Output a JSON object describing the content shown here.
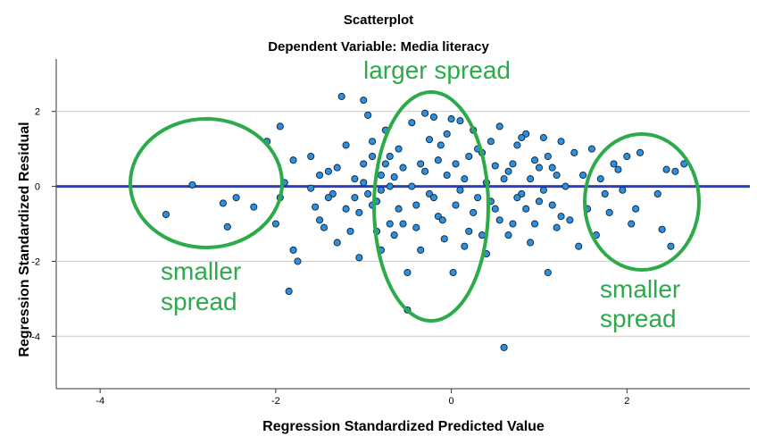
{
  "chart_data": {
    "type": "scatter",
    "title": "Scatterplot",
    "subtitle": "Dependent Variable: Media literacy",
    "xlabel": "Regression Standardized Predicted Value",
    "ylabel": "Regression Standardized Residual",
    "xlim": [
      -4.5,
      3.4
    ],
    "ylim": [
      -5.4,
      3.4
    ],
    "x_ticks": [
      -4,
      -2,
      0,
      2
    ],
    "x_tick_labels": [
      "-4",
      "-2",
      "0",
      "2"
    ],
    "y_ticks": [
      2,
      0,
      -2,
      -4
    ],
    "y_tick_labels": [
      "2",
      "0",
      "-2",
      "-4"
    ],
    "gridlines": "horizontal",
    "reference_line_y": 0,
    "colors": {
      "point_fill": "#2e8fdf",
      "point_stroke": "#0b2236",
      "reference_line": "#2d3fbf",
      "gridline": "#c8c8c8",
      "annotation": "#2daa4a"
    },
    "annotations": [
      {
        "text": "larger spread",
        "lines": [
          "larger spread"
        ]
      },
      {
        "text": "smaller spread",
        "lines": [
          "smaller",
          "spread"
        ]
      },
      {
        "text": "smaller spread",
        "lines": [
          "smaller",
          "spread"
        ]
      }
    ],
    "series": [
      {
        "values": [
          [
            -3.25,
            -0.75
          ],
          [
            -2.95,
            0.04
          ],
          [
            -2.6,
            -0.45
          ],
          [
            -2.55,
            -1.08
          ],
          [
            -2.45,
            -0.3
          ],
          [
            -2.25,
            -0.55
          ],
          [
            -2.1,
            1.2
          ],
          [
            -2.0,
            -1.0
          ],
          [
            -1.95,
            1.6
          ],
          [
            -1.95,
            -0.3
          ],
          [
            -1.9,
            0.1
          ],
          [
            -1.85,
            -2.8
          ],
          [
            -1.8,
            -1.7
          ],
          [
            -1.8,
            0.7
          ],
          [
            -1.75,
            -2.0
          ],
          [
            -1.6,
            -0.05
          ],
          [
            -1.55,
            -0.55
          ],
          [
            -1.5,
            -0.9
          ],
          [
            -1.45,
            -1.1
          ],
          [
            -1.4,
            0.4
          ],
          [
            -1.35,
            -0.2
          ],
          [
            -1.3,
            -1.5
          ],
          [
            -1.25,
            2.4
          ],
          [
            -1.2,
            1.1
          ],
          [
            -1.15,
            -1.2
          ],
          [
            -1.1,
            0.2
          ],
          [
            -1.05,
            -1.9
          ],
          [
            -1.0,
            2.3
          ],
          [
            -0.95,
            1.9
          ],
          [
            -0.9,
            0.8
          ],
          [
            -0.85,
            -0.4
          ],
          [
            -0.8,
            -1.7
          ],
          [
            -0.75,
            1.5
          ],
          [
            -0.7,
            0.0
          ],
          [
            -0.65,
            -1.3
          ],
          [
            -0.6,
            1.0
          ],
          [
            -0.55,
            0.5
          ],
          [
            -0.5,
            -2.3
          ],
          [
            -0.45,
            1.7
          ],
          [
            -0.4,
            -1.1
          ],
          [
            -0.35,
            0.6
          ],
          [
            -0.3,
            1.95
          ],
          [
            -0.25,
            -0.2
          ],
          [
            -0.2,
            1.85
          ],
          [
            -0.15,
            -0.8
          ],
          [
            -0.12,
            1.1
          ],
          [
            -0.08,
            -1.4
          ],
          [
            -0.05,
            0.3
          ],
          [
            0.0,
            1.8
          ],
          [
            0.02,
            -2.3
          ],
          [
            0.05,
            -0.5
          ],
          [
            0.1,
            1.75
          ],
          [
            0.15,
            0.2
          ],
          [
            0.2,
            -1.2
          ],
          [
            0.25,
            1.5
          ],
          [
            0.3,
            -0.3
          ],
          [
            0.35,
            0.9
          ],
          [
            0.4,
            -1.8
          ],
          [
            0.45,
            1.2
          ],
          [
            0.5,
            -0.6
          ],
          [
            0.55,
            1.6
          ],
          [
            0.6,
            -4.3
          ],
          [
            0.65,
            0.4
          ],
          [
            0.7,
            -1.0
          ],
          [
            0.75,
            1.1
          ],
          [
            0.8,
            -0.2
          ],
          [
            0.85,
            1.4
          ],
          [
            0.9,
            -1.5
          ],
          [
            0.95,
            0.7
          ],
          [
            1.0,
            -0.4
          ],
          [
            1.05,
            1.3
          ],
          [
            1.1,
            -2.3
          ],
          [
            1.15,
            0.5
          ],
          [
            1.2,
            -1.1
          ],
          [
            1.25,
            1.2
          ],
          [
            1.3,
            0.0
          ],
          [
            1.35,
            -0.9
          ],
          [
            1.4,
            0.9
          ],
          [
            1.45,
            -1.6
          ],
          [
            1.5,
            0.3
          ],
          [
            1.55,
            -0.6
          ],
          [
            1.6,
            1.0
          ],
          [
            1.65,
            -1.3
          ],
          [
            1.7,
            0.2
          ],
          [
            1.75,
            -0.2
          ],
          [
            1.8,
            -0.7
          ],
          [
            1.85,
            0.6
          ],
          [
            1.9,
            0.45
          ],
          [
            1.95,
            -0.1
          ],
          [
            2.0,
            0.8
          ],
          [
            2.05,
            -1.0
          ],
          [
            2.1,
            -0.6
          ],
          [
            2.15,
            0.9
          ],
          [
            2.35,
            -0.2
          ],
          [
            2.4,
            -1.15
          ],
          [
            2.45,
            0.45
          ],
          [
            2.5,
            -1.6
          ],
          [
            2.55,
            0.4
          ],
          [
            2.65,
            0.6
          ],
          [
            -0.5,
            -3.3
          ],
          [
            -0.55,
            -1.0
          ],
          [
            -0.45,
            0.0
          ],
          [
            -0.4,
            -0.5
          ],
          [
            -0.35,
            -1.7
          ],
          [
            -0.3,
            0.4
          ],
          [
            -0.25,
            1.25
          ],
          [
            -0.2,
            -0.3
          ],
          [
            -0.15,
            0.7
          ],
          [
            -0.1,
            -0.9
          ],
          [
            -0.05,
            1.4
          ],
          [
            0.05,
            0.6
          ],
          [
            0.1,
            -0.1
          ],
          [
            0.15,
            -1.6
          ],
          [
            0.2,
            0.8
          ],
          [
            0.25,
            -0.7
          ],
          [
            0.3,
            1.0
          ],
          [
            0.35,
            -1.3
          ],
          [
            0.4,
            0.1
          ],
          [
            0.45,
            -0.4
          ],
          [
            0.5,
            0.55
          ],
          [
            -0.6,
            -0.6
          ],
          [
            -0.65,
            0.25
          ],
          [
            -0.7,
            -1.0
          ],
          [
            -0.75,
            0.6
          ],
          [
            -0.8,
            0.3
          ],
          [
            -0.85,
            -1.2
          ],
          [
            -0.9,
            1.2
          ],
          [
            -0.95,
            -0.2
          ],
          [
            -1.0,
            0.6
          ],
          [
            -1.05,
            -0.7
          ],
          [
            0.55,
            -0.9
          ],
          [
            0.6,
            0.2
          ],
          [
            0.65,
            -1.3
          ],
          [
            0.7,
            0.6
          ],
          [
            0.75,
            -0.3
          ],
          [
            0.8,
            1.3
          ],
          [
            0.85,
            -0.6
          ],
          [
            0.9,
            0.2
          ],
          [
            0.95,
            -1.0
          ],
          [
            1.0,
            0.5
          ],
          [
            1.05,
            -0.1
          ],
          [
            1.1,
            0.8
          ],
          [
            1.15,
            -0.5
          ],
          [
            1.2,
            0.3
          ],
          [
            1.25,
            -0.8
          ],
          [
            -1.6,
            0.8
          ],
          [
            -1.5,
            0.3
          ],
          [
            -1.4,
            -0.3
          ],
          [
            -1.3,
            0.5
          ],
          [
            -1.2,
            -0.6
          ],
          [
            -1.1,
            -0.3
          ],
          [
            -1.0,
            0.1
          ],
          [
            -0.9,
            -0.5
          ],
          [
            -0.8,
            -0.1
          ],
          [
            -0.7,
            0.8
          ]
        ]
      }
    ]
  }
}
